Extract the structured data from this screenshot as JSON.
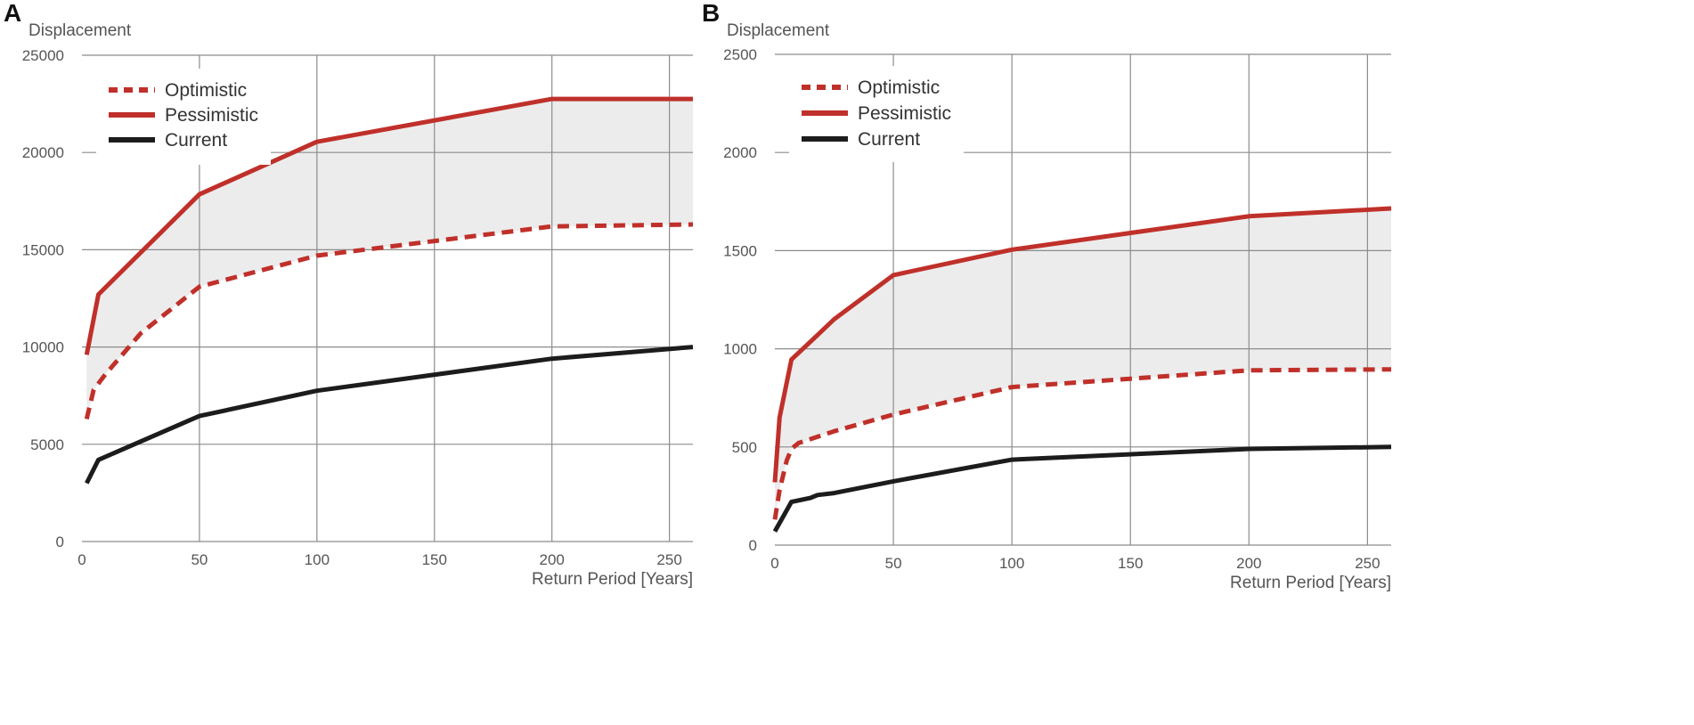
{
  "figure": {
    "panels": [
      "A",
      "B"
    ]
  },
  "chart_data": [
    {
      "panel": "A",
      "type": "line",
      "ylabel": "Displacement",
      "xlabel": "Return Period [Years]",
      "xlim": [
        0,
        260
      ],
      "ylim": [
        0,
        25000
      ],
      "x_ticks": [
        0,
        50,
        100,
        150,
        200,
        250
      ],
      "y_ticks": [
        0,
        5000,
        10000,
        15000,
        20000,
        25000
      ],
      "grid": true,
      "legend_position": "top-left",
      "shaded_band": {
        "between": [
          "Optimistic",
          "Pessimistic"
        ],
        "color": "#ececec"
      },
      "series": [
        {
          "name": "Optimistic",
          "style": "dashed",
          "color": "#c0302a",
          "x": [
            2,
            5,
            10,
            25,
            50,
            100,
            200,
            260
          ],
          "y": [
            6300,
            7800,
            8600,
            10700,
            13100,
            14700,
            16200,
            16300
          ]
        },
        {
          "name": "Pessimistic",
          "style": "solid",
          "color": "#c0302a",
          "x": [
            2,
            7,
            50,
            100,
            200,
            260
          ],
          "y": [
            9600,
            12700,
            17850,
            20550,
            22750,
            22750
          ]
        },
        {
          "name": "Current",
          "style": "solid",
          "color": "#1c1c1c",
          "x": [
            2,
            7,
            50,
            100,
            200,
            260
          ],
          "y": [
            3000,
            4200,
            6450,
            7750,
            9400,
            10000
          ]
        }
      ]
    },
    {
      "panel": "B",
      "type": "line",
      "ylabel": "Displacement",
      "xlabel": "Return Period [Years]",
      "xlim": [
        0,
        260
      ],
      "ylim": [
        0,
        2500
      ],
      "x_ticks": [
        0,
        50,
        100,
        150,
        200,
        250
      ],
      "y_ticks": [
        0,
        500,
        1000,
        1500,
        2000,
        2500
      ],
      "grid": true,
      "legend_position": "top-left",
      "shaded_band": {
        "between": [
          "Optimistic",
          "Pessimistic"
        ],
        "color": "#ececec"
      },
      "series": [
        {
          "name": "Optimistic",
          "style": "dashed",
          "color": "#c0302a",
          "x": [
            0,
            2,
            5,
            7,
            10,
            25,
            50,
            100,
            200,
            260
          ],
          "y": [
            130,
            280,
            430,
            490,
            520,
            580,
            665,
            805,
            890,
            895
          ]
        },
        {
          "name": "Pessimistic",
          "style": "solid",
          "color": "#c0302a",
          "x": [
            0,
            2,
            7,
            18,
            25,
            50,
            100,
            200,
            260
          ],
          "y": [
            320,
            650,
            945,
            1070,
            1150,
            1375,
            1505,
            1675,
            1715
          ]
        },
        {
          "name": "Current",
          "style": "solid",
          "color": "#1c1c1c",
          "x": [
            0,
            7,
            15,
            18,
            25,
            50,
            100,
            200,
            260
          ],
          "y": [
            70,
            220,
            240,
            255,
            265,
            325,
            435,
            490,
            500
          ]
        }
      ]
    }
  ]
}
